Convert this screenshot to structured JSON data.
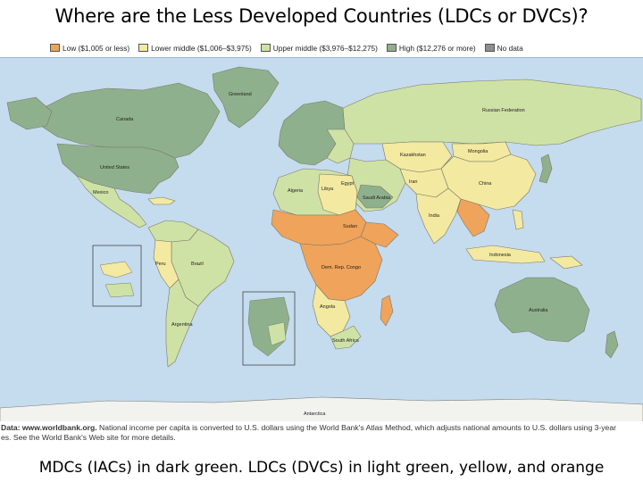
{
  "slide": {
    "title": "Where are the Less Developed Countries (LDCs or DVCs)?",
    "caption": "MDCs (IACs) in dark green.  LDCs (DVCs) in light green, yellow, and orange"
  },
  "legend": {
    "items": [
      {
        "label": "Low ($1,005 or less)",
        "color": "#f0a35a"
      },
      {
        "label": "Lower middle ($1,006–$3,975)",
        "color": "#f3e9a0"
      },
      {
        "label": "Upper middle ($3,976–$12,275)",
        "color": "#cfe2a6"
      },
      {
        "label": "High ($12,276 or more)",
        "color": "#8fb08c"
      },
      {
        "label": "No data",
        "color": "#8e8e8e"
      }
    ]
  },
  "source": {
    "bold": "Data: www.worldbank.org.",
    "line1": " National income per capita is converted to U.S. dollars using the World Bank's Atlas Method, which adjusts national amounts to U.S. dollars using 3-year",
    "line2": "es. See the World Bank's Web site for more details."
  },
  "map_labels": {
    "canada": "Canada",
    "usa": "United States",
    "mexico": "Mexico",
    "brazil": "Brazil",
    "russia": "Russian Federation",
    "china": "China",
    "india": "India",
    "australia": "Australia",
    "greenland": "Greenland",
    "mongolia": "Mongolia",
    "kazakhstan": "Kazakhstan",
    "iran": "Iran",
    "algeria": "Algeria",
    "libya": "Libya",
    "egypt": "Egypt",
    "sudan": "Sudan",
    "dr_congo": "Dem. Rep. Congo",
    "angola": "Angola",
    "south_africa": "South Africa",
    "argentina": "Argentina",
    "peru": "Peru",
    "indonesia": "Indonesia",
    "saudi": "Saudi Arabia",
    "antarctica": "Antarctica"
  }
}
